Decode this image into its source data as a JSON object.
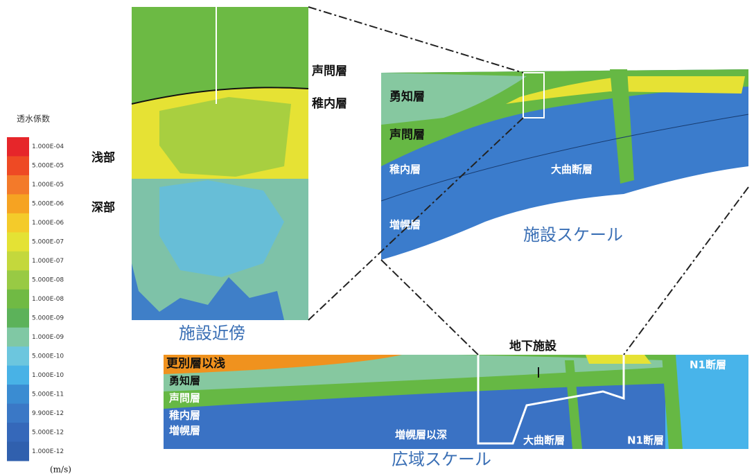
{
  "legend": {
    "title": "透水係数",
    "unit": "(m/s)",
    "entries": [
      {
        "label": "1.000E-04",
        "color": "#e6262a"
      },
      {
        "label": "5.000E-05",
        "color": "#ee4a24"
      },
      {
        "label": "1.000E-05",
        "color": "#f37a2a"
      },
      {
        "label": "5.000E-06",
        "color": "#f6a322"
      },
      {
        "label": "1.000E-06",
        "color": "#f4cb2a"
      },
      {
        "label": "5.000E-07",
        "color": "#e4e234"
      },
      {
        "label": "1.000E-07",
        "color": "#c4d83c"
      },
      {
        "label": "5.000E-08",
        "color": "#98ca44"
      },
      {
        "label": "1.000E-08",
        "color": "#70ba44"
      },
      {
        "label": "5.000E-09",
        "color": "#5cb25a"
      },
      {
        "label": "1.000E-09",
        "color": "#80c8a4"
      },
      {
        "label": "5.000E-10",
        "color": "#6cc6de"
      },
      {
        "label": "1.000E-10",
        "color": "#48b2e6"
      },
      {
        "label": "5.000E-11",
        "color": "#3a8cd2"
      },
      {
        "label": "9.900E-12",
        "color": "#3a78c6"
      },
      {
        "label": "5.000E-12",
        "color": "#3568ba"
      },
      {
        "label": "1.000E-12",
        "color": "#3060ae"
      }
    ]
  },
  "near_field": {
    "caption": "施設近傍",
    "labels": [
      "声問層",
      "稚内層",
      "浅部",
      "深部"
    ]
  },
  "facility_scale": {
    "caption": "施設スケール",
    "labels": [
      "勇知層",
      "声問層",
      "稚内層",
      "増幌層",
      "大曲断層"
    ]
  },
  "regional_scale": {
    "caption": "広域スケール",
    "facility": "地下施設",
    "labels": [
      "更別層以浅",
      "勇知層",
      "声問層",
      "稚内層",
      "増幌層",
      "増幌層以深",
      "大曲断層",
      "N1断層",
      "N1断層"
    ]
  }
}
